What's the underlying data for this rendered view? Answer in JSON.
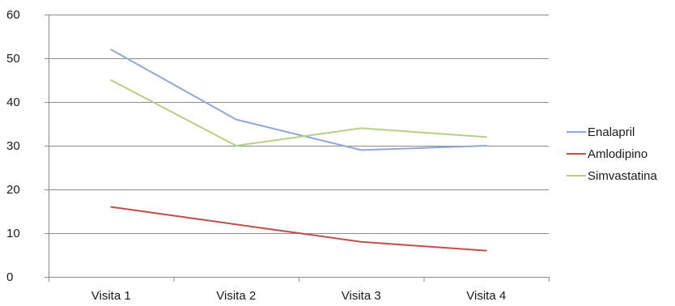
{
  "chart_data": {
    "type": "line",
    "categories": [
      "Visita 1",
      "Visita 2",
      "Visita 3",
      "Visita 4"
    ],
    "series": [
      {
        "name": "Enalapril",
        "values": [
          52,
          36,
          29,
          30
        ],
        "color": "#8fa9d6"
      },
      {
        "name": "Amlodipino",
        "values": [
          16,
          12,
          8,
          6
        ],
        "color": "#c0504d"
      },
      {
        "name": "Simvastatina",
        "values": [
          45,
          30,
          34,
          32
        ],
        "color": "#b7cf85"
      }
    ],
    "yticks": [
      "0",
      "10",
      "20",
      "30",
      "40",
      "50",
      "60"
    ],
    "ylim": [
      0,
      60
    ],
    "grid": true,
    "legend": "right"
  }
}
